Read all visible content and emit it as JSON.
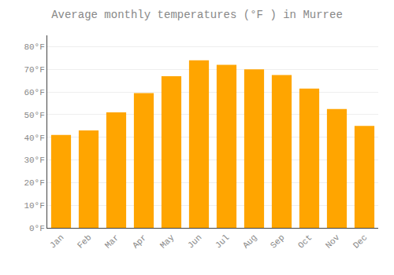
{
  "chart_data": {
    "type": "bar",
    "title": "Average monthly temperatures (°F ) in Murree",
    "categories": [
      "Jan",
      "Feb",
      "Mar",
      "Apr",
      "May",
      "Jun",
      "Jul",
      "Aug",
      "Sep",
      "Oct",
      "Nov",
      "Dec"
    ],
    "values": [
      41,
      43,
      51,
      59.5,
      67,
      74,
      72,
      70,
      67.5,
      61.5,
      52.5,
      45
    ],
    "color": "#FFA500",
    "ylim": [
      0,
      85
    ],
    "yticks": [
      {
        "value": 0,
        "label": "0°F"
      },
      {
        "value": 10,
        "label": "10°F"
      },
      {
        "value": 20,
        "label": "20°F"
      },
      {
        "value": 30,
        "label": "30°F"
      },
      {
        "value": 40,
        "label": "40°F"
      },
      {
        "value": 50,
        "label": "50°F"
      },
      {
        "value": 60,
        "label": "60°F"
      },
      {
        "value": 70,
        "label": "70°F"
      },
      {
        "value": 80,
        "label": "80°F"
      }
    ],
    "grid": true
  }
}
